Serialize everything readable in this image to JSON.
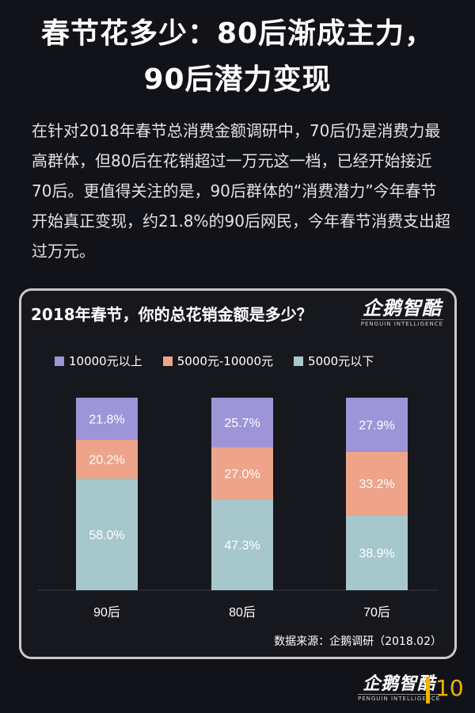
{
  "headline": {
    "line1": "春节花多少：80后渐成主力，",
    "line2": "90后潜力变现"
  },
  "intro": {
    "text": "在针对2018年春节总消费金额调研中，70后仍是消费力最高群体，但80后在花销超过一万元这一档，已经开始接近70后。更值得关注的是，90后群体的“消费潜力”今年春节开始真正变现，约21.8%的90后网民，今年春节消费支出超过万元。"
  },
  "brand": {
    "name": "企鹅智酷",
    "sub": "PENGUIN INTELLIGENCE"
  },
  "chart_data": {
    "type": "bar",
    "stacked": true,
    "title": "2018年春节，你的总花销金额是多少？",
    "categories": [
      "90后",
      "80后",
      "70后"
    ],
    "unit": "%",
    "ylim": [
      0,
      100
    ],
    "grid": false,
    "legend_position": "top",
    "series": [
      {
        "name": "5000元以下",
        "color": "#a6c7cb",
        "values": [
          58.0,
          47.3,
          38.9
        ],
        "labels": [
          "58.0%",
          "47.3%",
          "38.9%"
        ]
      },
      {
        "name": "5000元-10000元",
        "color": "#eda48a",
        "values": [
          20.2,
          27.0,
          33.2
        ],
        "labels": [
          "20.2%",
          "27.0%",
          "33.2%"
        ]
      },
      {
        "name": "10000元以上",
        "color": "#9d95d8",
        "values": [
          21.8,
          25.7,
          27.9
        ],
        "labels": [
          "21.8%",
          "25.7%",
          "27.9%"
        ]
      }
    ],
    "legend_order": [
      "10000元以上",
      "5000元-10000元",
      "5000元以下"
    ]
  },
  "source": "数据来源：企鹅调研（2018.02）",
  "page_number": "10"
}
